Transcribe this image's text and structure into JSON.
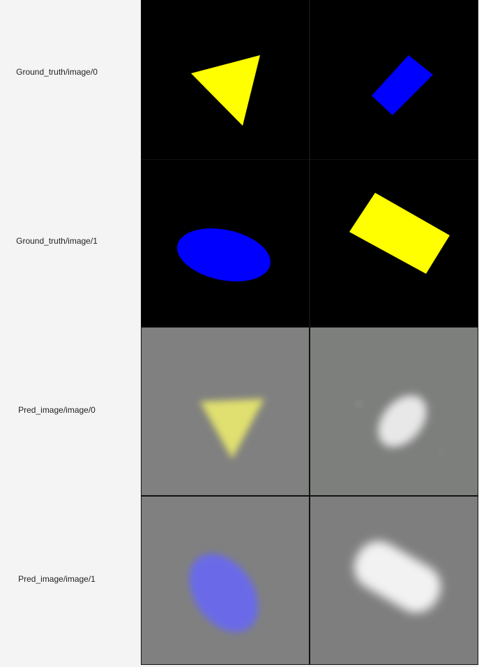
{
  "rows": [
    {
      "label": "Ground_truth/image/0"
    },
    {
      "label": "Ground_truth/image/1"
    },
    {
      "label": "Pred_image/image/0"
    },
    {
      "label": "Pred_image/image/1"
    }
  ],
  "colors": {
    "page_bg": "#f4f4f4",
    "gt_bg": "#000000",
    "pred_bg": "#808080",
    "yellow": "#ffff00",
    "blue": "#0000ff",
    "pred_yellow": "#e0e070",
    "pred_blue": "#6a6ae8",
    "pred_white": "#ececec"
  }
}
